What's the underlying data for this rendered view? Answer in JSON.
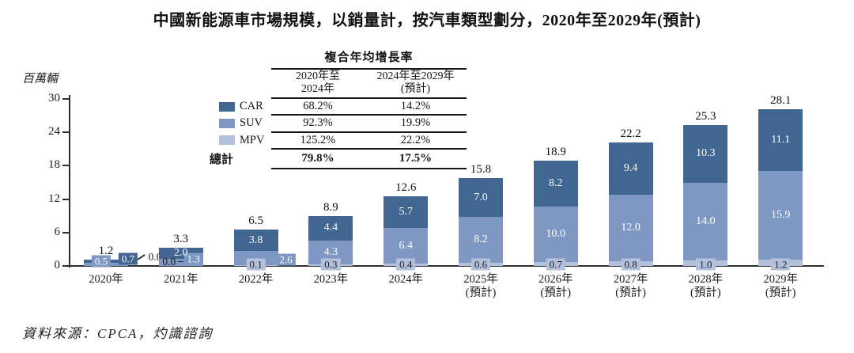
{
  "title": "中國新能源車市場規模，以銷量計，按汽車類型劃分，2020年至2029年(預計)",
  "y_axis": {
    "unit_label": "百萬輛",
    "ticks": [
      0,
      6,
      12,
      18,
      24,
      30
    ]
  },
  "legend": [
    {
      "label": "CAR",
      "color": "#416691"
    },
    {
      "label": "SUV",
      "color": "#7E97C3"
    },
    {
      "label": "MPV",
      "color": "#B2C0DC"
    }
  ],
  "cagr_table": {
    "title": "複合年均增長率",
    "col_headers": [
      [
        "2020年至",
        "2024年"
      ],
      [
        "2024年至2029年",
        "(預計)"
      ]
    ],
    "rows": [
      {
        "series": "CAR",
        "period1": "68.2%",
        "period2": "14.2%"
      },
      {
        "series": "SUV",
        "period1": "92.3%",
        "period2": "19.9%"
      },
      {
        "series": "MPV",
        "period1": "125.2%",
        "period2": "22.2%"
      }
    ],
    "total": {
      "label": "總計",
      "period1": "79.8%",
      "period2": "17.5%"
    }
  },
  "chart_data": {
    "type": "bar",
    "stacked": true,
    "title": "中國新能源車市場規模，以銷量計，按汽車類型劃分，2020年至2029年(預計)",
    "ylabel": "百萬輛",
    "ylim": [
      0,
      30
    ],
    "grid": false,
    "legend_position": "upper-left-of-plot",
    "categories": [
      {
        "label": "2020年",
        "sub": ""
      },
      {
        "label": "2021年",
        "sub": ""
      },
      {
        "label": "2022年",
        "sub": ""
      },
      {
        "label": "2023年",
        "sub": ""
      },
      {
        "label": "2024年",
        "sub": ""
      },
      {
        "label": "2025年",
        "sub": "(預計)"
      },
      {
        "label": "2026年",
        "sub": "(預計)"
      },
      {
        "label": "2027年",
        "sub": "(預計)"
      },
      {
        "label": "2028年",
        "sub": "(預計)"
      },
      {
        "label": "2029年",
        "sub": "(預計)"
      }
    ],
    "series": [
      {
        "name": "MPV",
        "color": "#B2C0DC",
        "values": [
          0.0,
          0.0,
          0.1,
          0.3,
          0.4,
          0.6,
          0.7,
          0.8,
          1.0,
          1.2
        ]
      },
      {
        "name": "SUV",
        "color": "#7E97C3",
        "values": [
          0.5,
          1.3,
          2.6,
          4.3,
          6.4,
          8.2,
          10.0,
          12.0,
          14.0,
          15.9
        ]
      },
      {
        "name": "CAR",
        "color": "#416691",
        "values": [
          0.7,
          2.0,
          3.8,
          4.4,
          5.7,
          7.0,
          8.2,
          9.4,
          10.3,
          11.1
        ]
      }
    ],
    "totals": [
      1.2,
      3.3,
      6.5,
      8.9,
      12.6,
      15.8,
      18.9,
      22.2,
      25.3,
      28.1
    ]
  },
  "source": "資料來源：CPCA，灼識諮詢"
}
